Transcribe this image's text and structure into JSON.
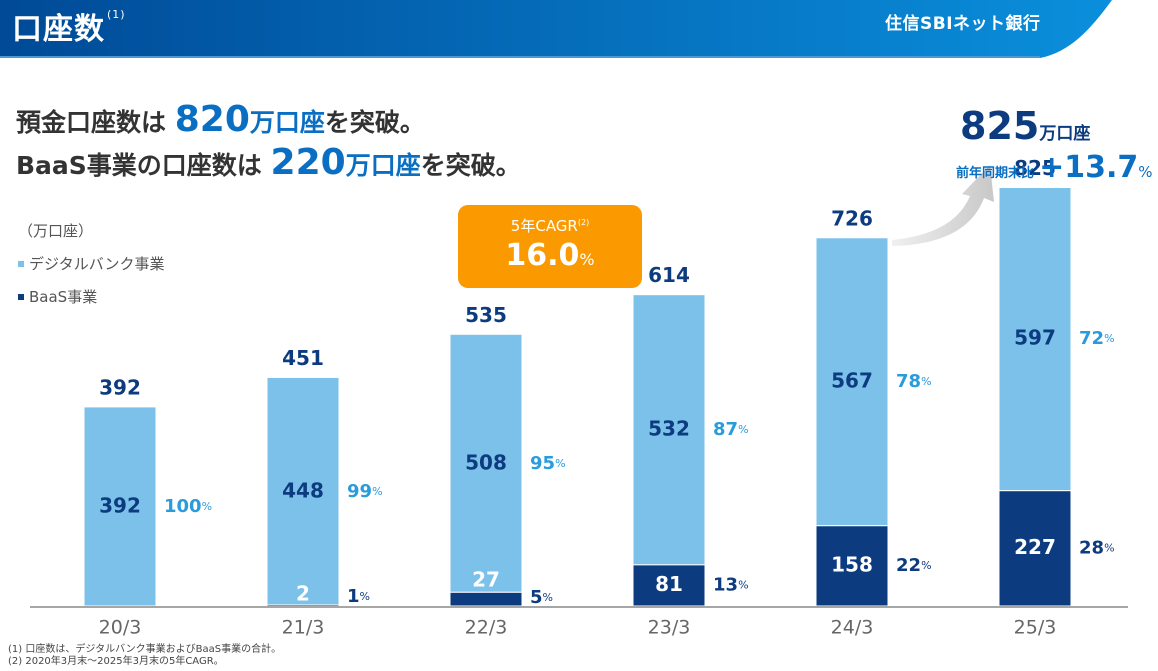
{
  "header": {
    "title": "口座数",
    "title_note": "(1)",
    "brand": "住信SBIネット銀行"
  },
  "headline": {
    "line1_prefix": "預金口座数は",
    "line1_value": "820",
    "line1_unit": "万口座",
    "line1_suffix": "を突破。",
    "line2_prefix": "BaaS事業の口座数は",
    "line2_value": "220",
    "line2_unit": "万口座",
    "line2_suffix": "を突破。"
  },
  "cagr_box": {
    "label": "5年CAGR",
    "note": "(2)",
    "value": "16.0",
    "unit": "%"
  },
  "summary": {
    "total": "825",
    "total_unit": "万口座",
    "yoy_label": "前年同期末比",
    "yoy_value": "+13.7",
    "yoy_unit": "%"
  },
  "colors": {
    "header_dark": "#004a97",
    "header_light": "#0a8fdc",
    "digital": "#7bc1ea",
    "baas": "#0d3b7f",
    "pct_light": "#2a9bdb",
    "cagr": "#fb9a00"
  },
  "chart_data": {
    "type": "bar",
    "stacked": true,
    "unit_label": "（万口座）",
    "categories": [
      "20/3",
      "21/3",
      "22/3",
      "23/3",
      "24/3",
      "25/3"
    ],
    "series": [
      {
        "name": "BaaS事業",
        "values": [
          0,
          2,
          27,
          81,
          158,
          227
        ],
        "share_pct": [
          null,
          1,
          5,
          13,
          22,
          28
        ]
      },
      {
        "name": "デジタルバンク事業",
        "values": [
          392,
          448,
          508,
          532,
          567,
          597
        ],
        "share_pct": [
          100,
          99,
          95,
          87,
          78,
          72
        ]
      }
    ],
    "totals": [
      392,
      451,
      535,
      614,
      726,
      825
    ],
    "legend": [
      "デジタルバンク事業",
      "BaaS事業"
    ],
    "legend_position": "top-left",
    "ylim": [
      0,
      825
    ],
    "grid": false
  },
  "notes": [
    "(1) 口座数は、デジタルバンク事業およびBaaS事業の合計。",
    "(2) 2020年3月末～2025年3月末の5年CAGR。"
  ]
}
